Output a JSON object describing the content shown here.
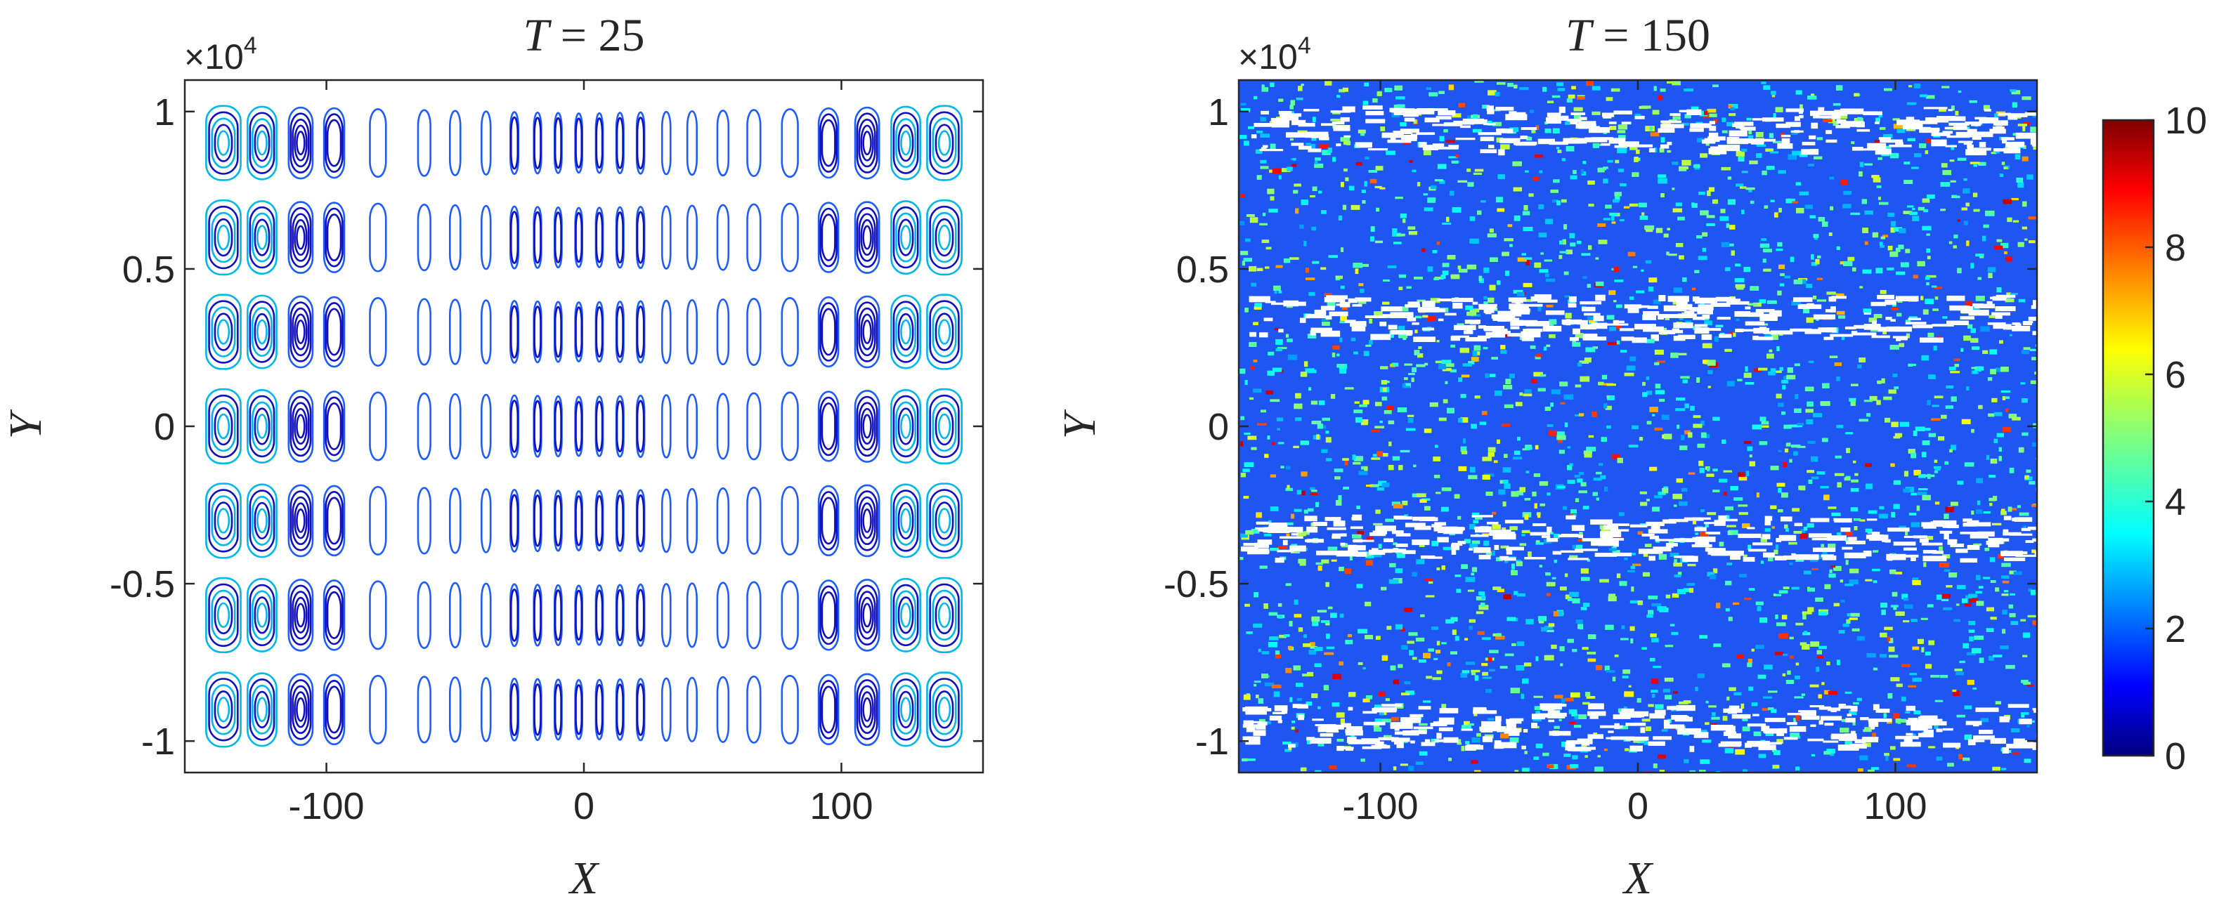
{
  "chart_data": [
    {
      "type": "contour",
      "title": "T = 25",
      "title_var": "T",
      "title_value": "25",
      "xlabel": "X",
      "ylabel": "Y",
      "xlim": [
        -155,
        155
      ],
      "ylim": [
        -1.1,
        1.1
      ],
      "y_multiplier": "×10",
      "y_multiplier_exp": "4",
      "xticks": [
        -100,
        0,
        100
      ],
      "xtick_labels": [
        "-100",
        "0",
        "100"
      ],
      "yticks": [
        -1,
        -0.5,
        0,
        0.5,
        1
      ],
      "ytick_labels": [
        "-1",
        "-0.5",
        "0",
        "0.5",
        "1"
      ],
      "rows_y": [
        -0.9,
        -0.6,
        -0.3,
        0,
        0.3,
        0.6,
        0.9
      ],
      "columns_x": [
        -140,
        -125,
        -110,
        -97,
        -80,
        -62,
        -50,
        -38,
        -27,
        -18,
        -10,
        -2,
        6,
        14,
        22,
        32,
        42,
        54,
        66,
        80,
        95,
        110,
        125,
        140
      ],
      "line_color": "#1e5cff"
    },
    {
      "type": "heatmap",
      "title": "T = 150",
      "title_var": "T",
      "title_value": "150",
      "xlabel": "X",
      "ylabel": "Y",
      "xlim": [
        -155,
        155
      ],
      "ylim": [
        -1.1,
        1.1
      ],
      "y_multiplier": "×10",
      "y_multiplier_exp": "4",
      "xticks": [
        -100,
        0,
        100
      ],
      "xtick_labels": [
        "-100",
        "0",
        "100"
      ],
      "yticks": [
        -1,
        -0.5,
        0,
        0.5,
        1
      ],
      "ytick_labels": [
        "-1",
        "-0.5",
        "0",
        "0.5",
        "1"
      ],
      "white_band_y": [
        -0.95,
        -0.35,
        0.35,
        0.95
      ],
      "colorbar": {
        "colormap": "jet",
        "range": [
          0,
          10
        ],
        "ticks": [
          0,
          2,
          4,
          6,
          8,
          10
        ],
        "tick_labels": [
          "0",
          "2",
          "4",
          "6",
          "8",
          "10"
        ]
      }
    }
  ]
}
